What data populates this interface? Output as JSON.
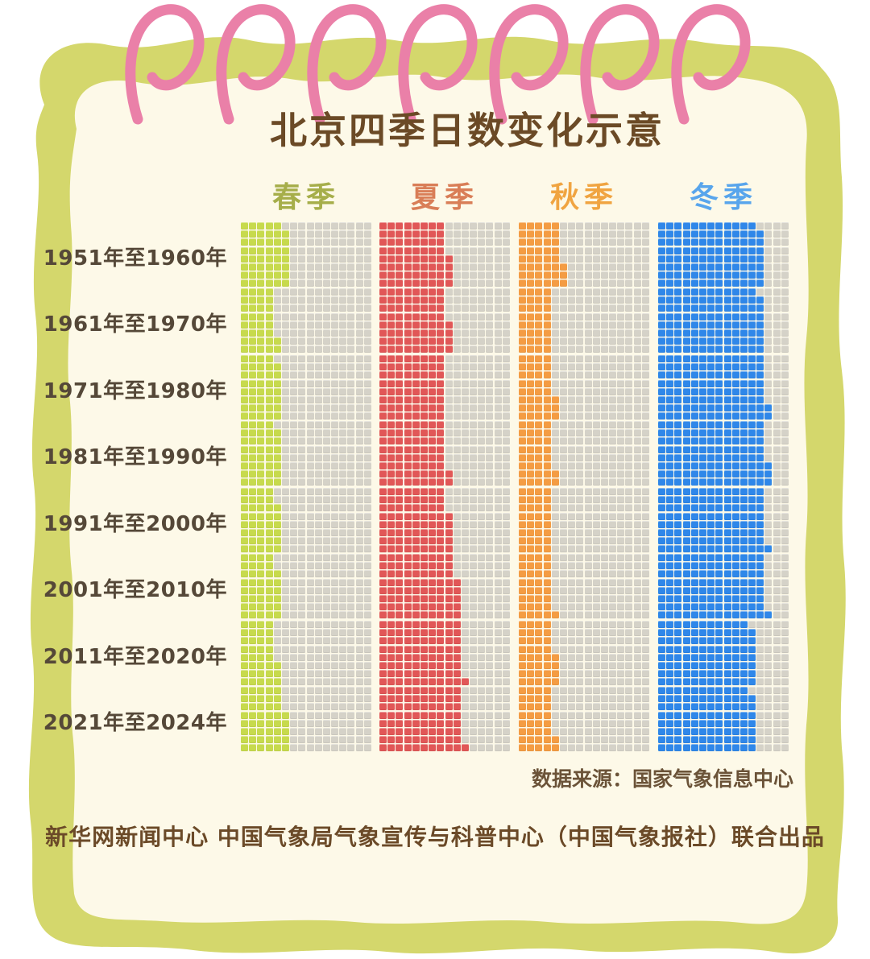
{
  "title": "北京四季日数变化示意",
  "source": "数据来源：国家气象信息中心",
  "credit": "新华网新闻中心 中国气象局气象宣传与科普中心（中国气象报社）联合出品",
  "colors": {
    "paper": "#fdf9e8",
    "border": "#d4d76c",
    "ring_pink": "#ea80a8",
    "empty_cell": "#d5d2c8",
    "title_brown": "#6b4a26",
    "row_label": "#554838"
  },
  "grid": {
    "rows": 8,
    "cols": 16,
    "unit": "1 cell = 1 day",
    "fill_order": "column by column, partial column fills from bottom"
  },
  "seasons": [
    {
      "id": "spring",
      "label": "春季",
      "header_color": "#a6ae4a",
      "cell_color": "#c7da4d"
    },
    {
      "id": "summer",
      "label": "夏季",
      "header_color": "#d97e57",
      "cell_color": "#e15757"
    },
    {
      "id": "autumn",
      "label": "秋季",
      "header_color": "#f0a441",
      "cell_color": "#f49c43"
    },
    {
      "id": "winter",
      "label": "冬季",
      "header_color": "#58a5ec",
      "cell_color": "#2f87e9"
    }
  ],
  "rows": [
    {
      "label": "1951年至1960年",
      "values": {
        "spring": 47,
        "summer": 68,
        "autumn": 43,
        "winter": 103
      }
    },
    {
      "label": "1961年至1970年",
      "values": {
        "spring": 34,
        "summer": 68,
        "autumn": 32,
        "winter": 103
      }
    },
    {
      "label": "1971年至1980年",
      "values": {
        "spring": 39,
        "summer": 64,
        "autumn": 35,
        "winter": 106
      }
    },
    {
      "label": "1981年至1990年",
      "values": {
        "spring": 39,
        "summer": 66,
        "autumn": 34,
        "winter": 107
      }
    },
    {
      "label": "1991年至2000年",
      "values": {
        "spring": 38,
        "summer": 69,
        "autumn": 32,
        "winter": 105
      }
    },
    {
      "label": "2001年至2010年",
      "values": {
        "spring": 38,
        "summer": 77,
        "autumn": 33,
        "winter": 105
      }
    },
    {
      "label": "2011年至2020年",
      "values": {
        "spring": 35,
        "summer": 81,
        "autumn": 36,
        "winter": 95
      }
    },
    {
      "label": "2021年至2024年",
      "values": {
        "spring": 45,
        "summer": 81,
        "autumn": 34,
        "winter": 95
      }
    }
  ],
  "chart_data": {
    "type": "waffle",
    "title": "北京四季日数变化示意",
    "unit": "1 cell = 1 day, grids of 8 rows x 16 columns per season per decade",
    "categories": [
      "1951年至1960年",
      "1961年至1970年",
      "1971年至1980年",
      "1981年至1990年",
      "1991年至2000年",
      "2001年至2010年",
      "2011年至2020年",
      "2021年至2024年"
    ],
    "series": [
      {
        "name": "春季",
        "color": "#c7da4d",
        "values": [
          47,
          34,
          39,
          39,
          38,
          38,
          35,
          45
        ]
      },
      {
        "name": "夏季",
        "color": "#e15757",
        "values": [
          68,
          68,
          64,
          66,
          69,
          77,
          81,
          81
        ]
      },
      {
        "name": "秋季",
        "color": "#f49c43",
        "values": [
          43,
          32,
          35,
          34,
          32,
          33,
          36,
          34
        ]
      },
      {
        "name": "冬季",
        "color": "#2f87e9",
        "values": [
          103,
          103,
          106,
          107,
          105,
          105,
          95,
          95
        ]
      }
    ],
    "legend_position": "top",
    "empty_cell_color": "#d5d2c8",
    "source": "数据来源：国家气象信息中心"
  }
}
